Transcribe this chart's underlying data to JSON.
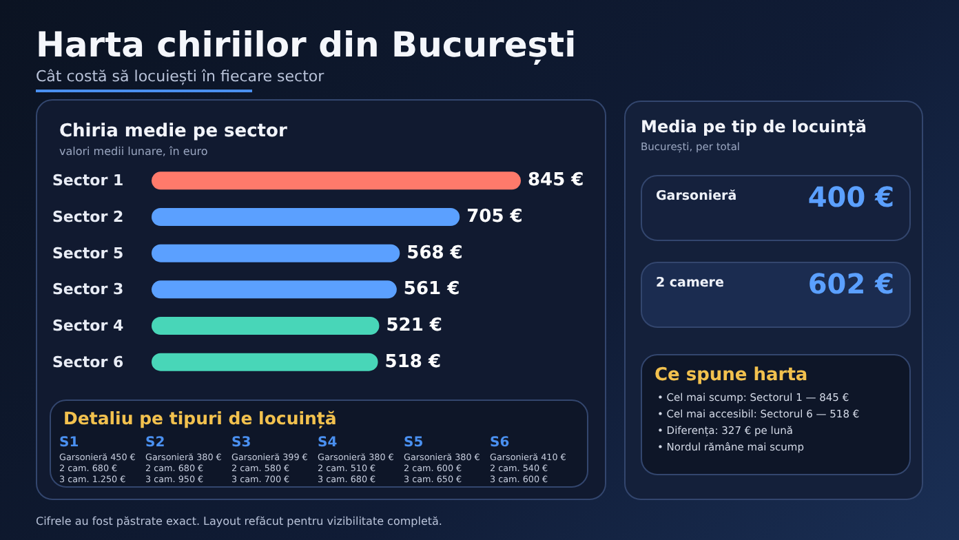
{
  "chart_data": [
    {
      "type": "other",
      "title": "Harta chiriilor din București",
      "subtitle": "Cât costă să locuiești în fiecare sector",
      "annotations": [
        "Cifrele au fost păstrate exact. Layout refăcut pentru vizibilitate completă."
      ]
    },
    {
      "type": "bar",
      "orientation": "horizontal",
      "title": "Chiria medie pe sector",
      "subtitle": "valori medii lunare, în euro",
      "categories": [
        "Sector 1",
        "Sector 2",
        "Sector 5",
        "Sector 3",
        "Sector 4",
        "Sector 6"
      ],
      "values": [
        845,
        705,
        568,
        561,
        521,
        518
      ],
      "colors": [
        "#ff7a6b",
        "#5ba0ff",
        "#5ba0ff",
        "#5ba0ff",
        "#48d6b8",
        "#48d6b8"
      ],
      "value_labels": [
        "845 €",
        "705 €",
        "568 €",
        "561 €",
        "521 €",
        "518 €"
      ]
    },
    {
      "type": "other",
      "title": "Detaliu pe tipuri de locuință",
      "categories": [
        "S1",
        "S2",
        "S3",
        "S4",
        "S5",
        "S6"
      ],
      "annotations": [
        "Garsonieră 450 €",
        "2 cam. 680 €",
        "3 cam. 1.250 €",
        "Garsonieră 380 €",
        "2 cam. 680 €",
        "3 cam. 950 €",
        "Garsonieră 399 €",
        "2 cam. 580 €",
        "3 cam. 700 €",
        "Garsonieră 380 €",
        "2 cam. 510 €",
        "3 cam. 680 €",
        "Garsonieră 380 €",
        "2 cam. 600 €",
        "3 cam. 650 €",
        "Garsonieră 410 €",
        "2 cam. 540 €",
        "3 cam. 600 €"
      ]
    },
    {
      "type": "other",
      "title": "Media pe tip de locuință",
      "subtitle": "București, per total",
      "annotations": [
        "Garsonieră",
        "400 €",
        "2 camere",
        "602 €"
      ],
      "color": "#5ba0ff"
    },
    {
      "type": "other",
      "title": "Ce spune harta",
      "annotations": [
        "• Cel mai scump: Sectorul 1 — 845 €",
        "• Cel mai accesibil: Sectorul 6 — 518 €",
        "• Diferența: 327 € pe lună",
        "• Nordul rămâne mai scump"
      ]
    }
  ]
}
